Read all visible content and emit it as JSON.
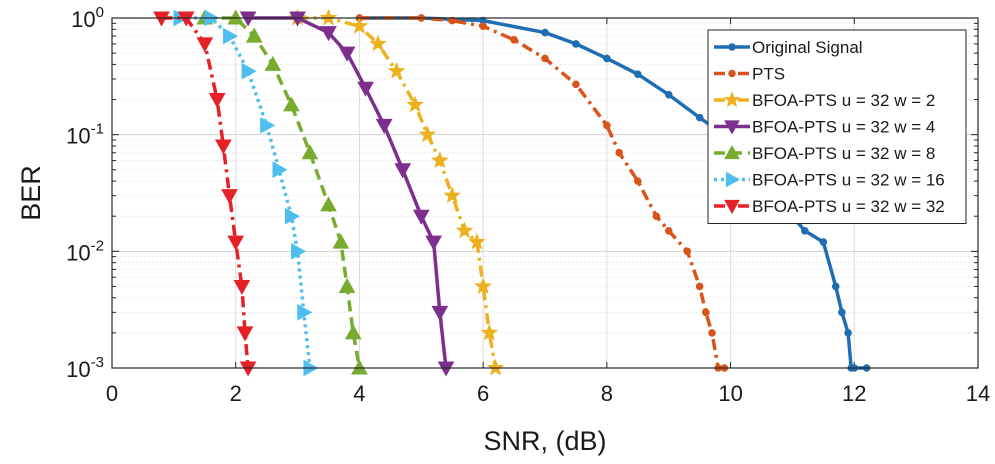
{
  "chart_data": {
    "type": "line",
    "title": "",
    "xlabel": "SNR, (dB)",
    "ylabel": "BER",
    "xlim": [
      0,
      14
    ],
    "ylim": [
      0.001,
      1
    ],
    "yscale": "log",
    "grid": true,
    "xticks": [
      0,
      2,
      4,
      6,
      8,
      10,
      12,
      14
    ],
    "xtick_labels": [
      "0",
      "2",
      "4",
      "6",
      "8",
      "10",
      "12",
      "14"
    ],
    "yticks": [
      {
        "value": 1,
        "base": "10",
        "exp": "0"
      },
      {
        "value": 0.1,
        "base": "10",
        "exp": "-1"
      },
      {
        "value": 0.01,
        "base": "10",
        "exp": "-2"
      },
      {
        "value": 0.001,
        "base": "10",
        "exp": "-3"
      }
    ],
    "legend_position": "top-right",
    "series": [
      {
        "name": "Original Signal",
        "color": "#1f6db3",
        "marker": "circle",
        "dash": "solid",
        "x": [
          4.0,
          5.0,
          6.0,
          7.0,
          7.5,
          8.0,
          8.5,
          9.0,
          9.5,
          10.0,
          10.5,
          11.0,
          11.2,
          11.5,
          11.7,
          11.8,
          11.9,
          11.95,
          12.0,
          12.2
        ],
        "y": [
          1.0,
          1.0,
          0.95,
          0.75,
          0.6,
          0.45,
          0.33,
          0.22,
          0.14,
          0.09,
          0.05,
          0.02,
          0.015,
          0.012,
          0.005,
          0.003,
          0.002,
          0.001,
          0.001,
          0.001
        ]
      },
      {
        "name": "PTS",
        "color": "#d9541a",
        "marker": "circle",
        "dash": "dash-dot",
        "x": [
          4.0,
          5.0,
          5.5,
          6.0,
          6.5,
          7.0,
          7.5,
          8.0,
          8.2,
          8.5,
          8.8,
          9.0,
          9.3,
          9.5,
          9.6,
          9.7,
          9.8,
          9.9
        ],
        "y": [
          1.0,
          1.0,
          0.95,
          0.85,
          0.65,
          0.45,
          0.27,
          0.12,
          0.07,
          0.04,
          0.02,
          0.015,
          0.01,
          0.005,
          0.003,
          0.002,
          0.001,
          0.001
        ]
      },
      {
        "name": "BFOA-PTS u = 32 w = 2",
        "color": "#edb120",
        "marker": "star",
        "dash": "dash-dot",
        "x": [
          3.0,
          3.5,
          4.0,
          4.3,
          4.6,
          4.9,
          5.1,
          5.3,
          5.5,
          5.7,
          5.9,
          6.0,
          6.1,
          6.2
        ],
        "y": [
          1.0,
          1.0,
          0.85,
          0.6,
          0.35,
          0.18,
          0.1,
          0.06,
          0.03,
          0.015,
          0.012,
          0.005,
          0.002,
          0.001
        ]
      },
      {
        "name": "BFOA-PTS u = 32 w = 4",
        "color": "#7e2f8e",
        "marker": "triangle-down",
        "dash": "solid",
        "x": [
          2.2,
          3.0,
          3.5,
          3.8,
          4.1,
          4.4,
          4.7,
          5.0,
          5.2,
          5.3,
          5.4
        ],
        "y": [
          1.0,
          1.0,
          0.75,
          0.5,
          0.25,
          0.12,
          0.05,
          0.02,
          0.012,
          0.003,
          0.001
        ]
      },
      {
        "name": "BFOA-PTS u = 32 w = 8",
        "color": "#77ac30",
        "marker": "triangle-up",
        "dash": "dashed",
        "x": [
          1.5,
          2.0,
          2.3,
          2.6,
          2.9,
          3.2,
          3.5,
          3.7,
          3.8,
          3.9,
          4.0
        ],
        "y": [
          1.0,
          1.0,
          0.7,
          0.4,
          0.18,
          0.07,
          0.025,
          0.012,
          0.005,
          0.002,
          0.001
        ]
      },
      {
        "name": "BFOA-PTS u = 32 w = 16",
        "color": "#4dbeee",
        "marker": "triangle-right",
        "dash": "dotted",
        "x": [
          1.1,
          1.6,
          1.9,
          2.2,
          2.5,
          2.7,
          2.9,
          3.0,
          3.1,
          3.2
        ],
        "y": [
          1.0,
          1.0,
          0.7,
          0.35,
          0.12,
          0.05,
          0.02,
          0.01,
          0.003,
          0.001
        ]
      },
      {
        "name": "BFOA-PTS u = 32 w = 32",
        "color": "#e52027",
        "marker": "triangle-down",
        "dash": "dash-dot",
        "x": [
          0.8,
          1.2,
          1.5,
          1.7,
          1.8,
          1.9,
          2.0,
          2.1,
          2.15,
          2.2
        ],
        "y": [
          1.0,
          1.0,
          0.6,
          0.2,
          0.08,
          0.03,
          0.012,
          0.005,
          0.002,
          0.001
        ]
      }
    ]
  }
}
